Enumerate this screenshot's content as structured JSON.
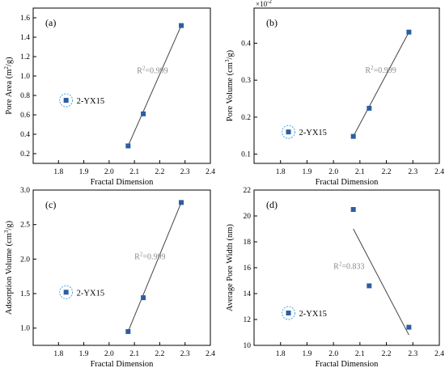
{
  "chart_data": [
    {
      "type": "scatter",
      "panel_label": "(a)",
      "xlabel": "Fractal Dimension",
      "ylabel_parts": [
        "Pore Area (m",
        "2",
        "/g)"
      ],
      "xlim": [
        1.7,
        2.4
      ],
      "ylim": [
        0.1,
        1.7
      ],
      "xticks": [
        1.8,
        1.9,
        2.0,
        2.1,
        2.2,
        2.3,
        2.4
      ],
      "yticks": [
        0.2,
        0.4,
        0.6,
        0.8,
        1.0,
        1.2,
        1.4,
        1.6
      ],
      "ytick_labels": [
        "0.2",
        "0.4",
        "0.6",
        "0.8",
        "1.0",
        "1.2",
        "1.4",
        "1.6"
      ],
      "series": [
        {
          "name": "2-YX15",
          "x": [
            2.075,
            2.135,
            2.285
          ],
          "y": [
            0.28,
            0.61,
            1.52
          ]
        }
      ],
      "fit": {
        "x": [
          2.075,
          2.285
        ],
        "y": [
          0.28,
          1.52
        ],
        "label_prefix": "R",
        "label_sup": "2",
        "label_value": "=0.999",
        "label_at": [
          2.11,
          1.03
        ]
      },
      "legend": "left-middle",
      "legend_at": [
        1.83,
        0.75
      ]
    },
    {
      "type": "scatter",
      "panel_label": "(b)",
      "xlabel": "Fractal Dimension",
      "ylabel_parts": [
        "Pore Volume (cm",
        "3",
        "/g)"
      ],
      "scale_note_base": "×10",
      "scale_note_exp": "-2",
      "xlim": [
        1.7,
        2.4
      ],
      "ylim": [
        0.075,
        0.495
      ],
      "xticks": [
        1.8,
        1.9,
        2.0,
        2.1,
        2.2,
        2.3,
        2.4
      ],
      "yticks": [
        0.1,
        0.2,
        0.3,
        0.4
      ],
      "ytick_labels": [
        "0.1",
        "0.2",
        "0.3",
        "0.4"
      ],
      "series": [
        {
          "name": "2-YX15",
          "x": [
            2.075,
            2.135,
            2.285
          ],
          "y": [
            0.148,
            0.224,
            0.43
          ]
        }
      ],
      "fit": {
        "x": [
          2.075,
          2.285
        ],
        "y": [
          0.148,
          0.43
        ],
        "label_prefix": "R",
        "label_sup": "2",
        "label_value": "=0.999",
        "label_at": [
          2.12,
          0.32
        ]
      },
      "legend": "left-bottom",
      "legend_at": [
        1.83,
        0.16
      ]
    },
    {
      "type": "scatter",
      "panel_label": "(c)",
      "xlabel": "Fractal Dimension",
      "ylabel_parts": [
        "Adsorption Volume (cm",
        "3",
        "/g)"
      ],
      "xlim": [
        1.7,
        2.4
      ],
      "ylim": [
        0.75,
        3.0
      ],
      "xticks": [
        1.8,
        1.9,
        2.0,
        2.1,
        2.2,
        2.3,
        2.4
      ],
      "yticks": [
        1.0,
        1.5,
        2.0,
        2.5,
        3.0
      ],
      "ytick_labels": [
        "1.0",
        "1.5",
        "2.0",
        "2.5",
        "3.0"
      ],
      "series": [
        {
          "name": "2-YX15",
          "x": [
            2.075,
            2.135,
            2.285
          ],
          "y": [
            0.95,
            1.44,
            2.82
          ]
        }
      ],
      "fit": {
        "x": [
          2.075,
          2.285
        ],
        "y": [
          0.95,
          2.82
        ],
        "label_prefix": "R",
        "label_sup": "2",
        "label_value": "=0.999",
        "label_at": [
          2.1,
          2.0
        ]
      },
      "legend": "left-middle",
      "legend_at": [
        1.83,
        1.52
      ]
    },
    {
      "type": "scatter",
      "panel_label": "(d)",
      "xlabel": "Fractal Dimension",
      "ylabel_parts": [
        "Average Pore Width (nm)"
      ],
      "xlim": [
        1.7,
        2.4
      ],
      "ylim": [
        10,
        22
      ],
      "xticks": [
        1.8,
        1.9,
        2.0,
        2.1,
        2.2,
        2.3,
        2.4
      ],
      "yticks": [
        10,
        12,
        14,
        16,
        18,
        20,
        22
      ],
      "ytick_labels": [
        "10",
        "12",
        "14",
        "16",
        "18",
        "20",
        "22"
      ],
      "series": [
        {
          "name": "2-YX15",
          "x": [
            2.075,
            2.135,
            2.285
          ],
          "y": [
            20.5,
            14.6,
            11.4
          ]
        }
      ],
      "fit": {
        "x": [
          2.075,
          2.285
        ],
        "y": [
          19.0,
          10.8
        ],
        "label_prefix": "R",
        "label_sup": "2",
        "label_value": "=0.833",
        "label_at": [
          2.0,
          15.9
        ]
      },
      "legend": "left-bottom",
      "legend_at": [
        1.83,
        12.5
      ]
    }
  ]
}
